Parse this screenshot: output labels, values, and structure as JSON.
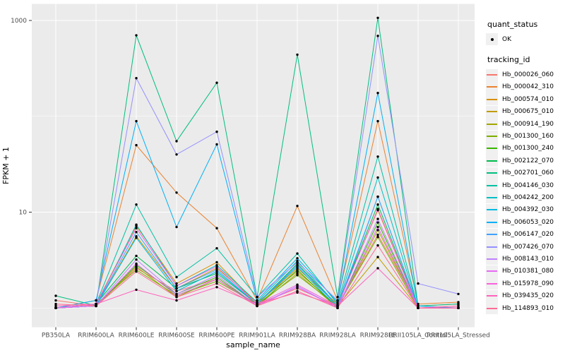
{
  "window": {
    "title": "FPKM expression line plot"
  },
  "colors": {
    "panel_bg": "#EBEBEB",
    "grid_major": "#FFFFFF",
    "grid_minor": "#FFFFFF",
    "tick_mark": "#333333",
    "tick_text": "#4D4D4D",
    "axis_title_text": "#000000",
    "point": "#000000",
    "legend_key_bg": "#F0F0F0"
  },
  "legend": {
    "quant_status_title": "quant_status",
    "quant_status_items": [
      "OK"
    ],
    "tracking_title": "tracking_id"
  },
  "chart_data": {
    "type": "line",
    "title": "",
    "xlabel": "sample_name",
    "ylabel": "FPKM + 1",
    "yscale": "log10",
    "ylim": [
      0.9,
      1200
    ],
    "grid": "on",
    "legend_position": "right",
    "y_ticks": [
      {
        "value": 1000,
        "label": "1000"
      },
      {
        "value": 10,
        "label": "10"
      }
    ],
    "y_gridlines_major": [
      10,
      1000
    ],
    "y_gridlines_minor": [
      1,
      100
    ],
    "categories": [
      "PB350LA",
      "RRIM600LA",
      "RRIM600LE",
      "RRIM600SE",
      "RRIM600PE",
      "RRIM901LA",
      "RRIM928BA",
      "RRIM928LA",
      "RRIM928LE",
      "RRII105LA_Control",
      "RRII105LA_Stressed"
    ],
    "series": [
      {
        "name": "Hb_000026_060",
        "color": "#F8766D",
        "values": [
          1.2,
          1.05,
          2.6,
          1.5,
          2.0,
          1.1,
          1.6,
          1.05,
          5.8,
          1.05,
          1.1
        ]
      },
      {
        "name": "Hb_000042_310",
        "color": "#EA8331",
        "values": [
          1.0,
          1.2,
          50,
          16,
          6.8,
          1.2,
          11.6,
          1.2,
          89,
          1.1,
          1.15
        ]
      },
      {
        "name": "Hb_000574_010",
        "color": "#D89000",
        "values": [
          1.0,
          1.1,
          7.2,
          1.8,
          3.0,
          1.1,
          2.6,
          1.1,
          10.5,
          1.0,
          1.05
        ]
      },
      {
        "name": "Hb_000675_010",
        "color": "#C09B00",
        "values": [
          1.0,
          1.05,
          5.6,
          1.6,
          2.6,
          1.15,
          2.4,
          1.05,
          3.4,
          1.0,
          1.0
        ]
      },
      {
        "name": "Hb_000914_190",
        "color": "#A3A500",
        "values": [
          1.0,
          1.05,
          2.7,
          1.3,
          2.0,
          1.05,
          2.3,
          1.0,
          6.5,
          1.0,
          1.0
        ]
      },
      {
        "name": "Hb_001300_160",
        "color": "#7CAE00",
        "values": [
          1.0,
          1.1,
          2.5,
          1.35,
          1.9,
          1.1,
          2.2,
          1.05,
          5.5,
          1.0,
          1.0
        ]
      },
      {
        "name": "Hb_001300_240",
        "color": "#39B600",
        "values": [
          1.0,
          1.05,
          2.8,
          1.4,
          2.1,
          1.05,
          2.5,
          1.0,
          7.8,
          1.0,
          1.0
        ]
      },
      {
        "name": "Hb_002122_070",
        "color": "#00BB4E",
        "values": [
          1.0,
          1.1,
          3.5,
          1.6,
          2.3,
          1.1,
          2.9,
          1.05,
          12,
          1.0,
          1.0
        ]
      },
      {
        "name": "Hb_002701_060",
        "color": "#00BF7D",
        "values": [
          1.34,
          1.06,
          700,
          55,
          224,
          1.3,
          440,
          1.3,
          1065,
          1.05,
          1.1
        ]
      },
      {
        "name": "Hb_004146_030",
        "color": "#00C1A3",
        "values": [
          1.0,
          1.1,
          12,
          2.1,
          4.2,
          1.3,
          3.7,
          1.1,
          38,
          1.0,
          1.0
        ]
      },
      {
        "name": "Hb_004242_200",
        "color": "#00BFC4",
        "values": [
          1.0,
          1.05,
          7.4,
          1.7,
          2.8,
          1.15,
          3.1,
          1.05,
          23,
          1.0,
          1.0
        ]
      },
      {
        "name": "Hb_004392_030",
        "color": "#00BAE0",
        "values": [
          1.0,
          1.05,
          5.4,
          1.5,
          2.4,
          1.1,
          2.7,
          1.0,
          14.5,
          1.0,
          1.0
        ]
      },
      {
        "name": "Hb_006053_020",
        "color": "#00B0F6",
        "values": [
          1.0,
          1.2,
          89,
          7.0,
          51,
          1.2,
          3.3,
          1.15,
          175,
          1.05,
          1.0
        ]
      },
      {
        "name": "Hb_006147_020",
        "color": "#3FA1FF",
        "values": [
          1.0,
          1.05,
          6.2,
          1.6,
          2.5,
          1.1,
          2.8,
          1.05,
          14.5,
          1.0,
          1.0
        ]
      },
      {
        "name": "Hb_007426_070",
        "color": "#9590FF",
        "values": [
          1.0,
          1.1,
          250,
          40,
          69,
          1.3,
          3.0,
          1.2,
          690,
          1.8,
          1.4
        ]
      },
      {
        "name": "Hb_008143_010",
        "color": "#BF80FF",
        "values": [
          1.0,
          1.05,
          3.2,
          1.4,
          2.2,
          1.05,
          1.7,
          1.0,
          8.5,
          1.0,
          1.0
        ]
      },
      {
        "name": "Hb_010381_080",
        "color": "#E76BF3",
        "values": [
          1.0,
          1.05,
          2.9,
          1.35,
          2.0,
          1.05,
          1.65,
          1.0,
          7.0,
          1.0,
          1.0
        ]
      },
      {
        "name": "Hb_015978_090",
        "color": "#FA62DB",
        "values": [
          1.0,
          1.1,
          6.8,
          1.7,
          2.7,
          1.1,
          1.75,
          1.05,
          10.8,
          1.0,
          1.0
        ]
      },
      {
        "name": "Hb_039435_020",
        "color": "#FF62BC",
        "values": [
          1.05,
          1.1,
          1.55,
          1.2,
          1.65,
          1.1,
          1.45,
          1.05,
          2.6,
          1.0,
          1.05
        ]
      },
      {
        "name": "Hb_114893_010",
        "color": "#FF6B94",
        "values": [
          1.1,
          1.05,
          2.4,
          1.3,
          1.8,
          1.05,
          1.5,
          1.0,
          4.5,
          1.0,
          1.0
        ]
      }
    ]
  }
}
